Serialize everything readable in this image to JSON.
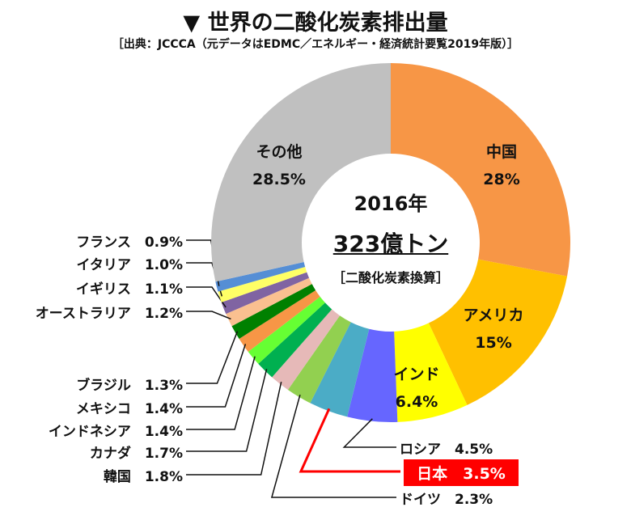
{
  "chart_data": {
    "type": "pie",
    "donut": true,
    "title": "▼ 世界の二酸化炭素排出量",
    "subtitle": "［出典：JCCCA（元データはEDMC／エネルギー・経済統計要覧2019年版）］",
    "center_text": {
      "year": "2016年",
      "total": "323億トン",
      "note": "［二酸化炭素換算］"
    },
    "slices": [
      {
        "label": "中国",
        "value": 28,
        "display": "28%",
        "color": "#f79646"
      },
      {
        "label": "アメリカ",
        "value": 15,
        "display": "15%",
        "color": "#ffc000"
      },
      {
        "label": "インド",
        "value": 6.4,
        "display": "6.4%",
        "color": "#ffff00"
      },
      {
        "label": "ロシア",
        "value": 4.5,
        "display": "4.5%",
        "color": "#6666ff"
      },
      {
        "label": "日本",
        "value": 3.5,
        "display": "3.5%",
        "color": "#4bacc6",
        "highlight": "#ff0000"
      },
      {
        "label": "ドイツ",
        "value": 2.3,
        "display": "2.3%",
        "color": "#92d050"
      },
      {
        "label": "韓国",
        "value": 1.8,
        "display": "1.8%",
        "color": "#e6b9b8"
      },
      {
        "label": "カナダ",
        "value": 1.7,
        "display": "1.7%",
        "color": "#00b050"
      },
      {
        "label": "インドネシア",
        "value": 1.4,
        "display": "1.4%",
        "color": "#66ff33"
      },
      {
        "label": "メキシコ",
        "value": 1.4,
        "display": "1.4%",
        "color": "#f79646"
      },
      {
        "label": "ブラジル",
        "value": 1.3,
        "display": "1.3%",
        "color": "#008000"
      },
      {
        "label": "オーストラリア",
        "value": 1.2,
        "display": "1.2%",
        "color": "#fac090"
      },
      {
        "label": "イギリス",
        "value": 1.1,
        "display": "1.1%",
        "color": "#8064a2"
      },
      {
        "label": "イタリア",
        "value": 1.0,
        "display": "1.0%",
        "color": "#ffff66"
      },
      {
        "label": "フランス",
        "value": 0.9,
        "display": "0.9%",
        "color": "#558ed5"
      },
      {
        "label": "その他",
        "value": 28.5,
        "display": "28.5%",
        "color": "#c0c0c0"
      }
    ]
  }
}
